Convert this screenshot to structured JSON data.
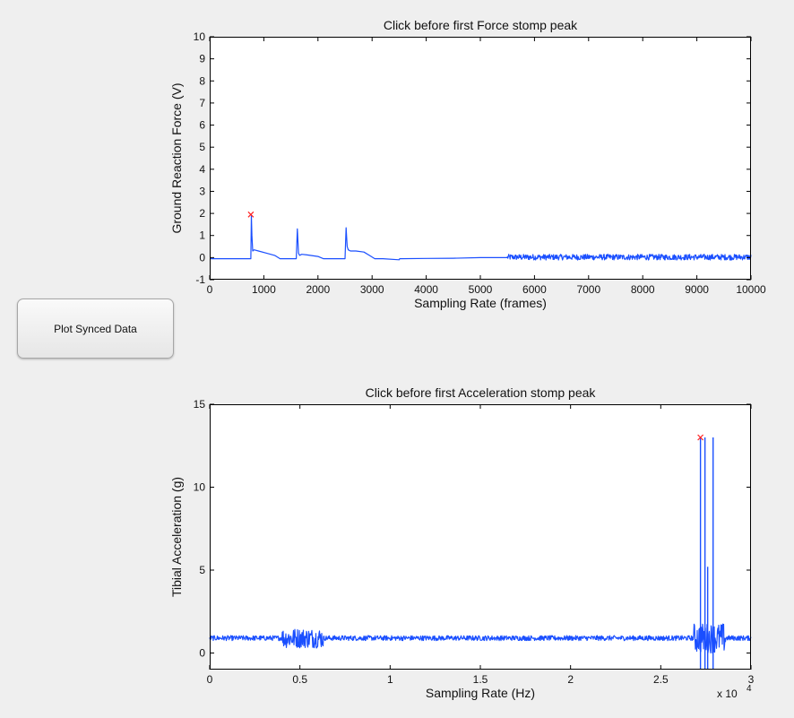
{
  "button": {
    "label": "Plot Synced Data"
  },
  "chart_data": [
    {
      "type": "line",
      "title": "Click before first Force stomp peak",
      "xlabel": "Sampling Rate (frames)",
      "ylabel": "Ground Reaction Force (V)",
      "xlim": [
        0,
        10000
      ],
      "ylim": [
        -1,
        10
      ],
      "xticks": [
        0,
        1000,
        2000,
        3000,
        4000,
        5000,
        6000,
        7000,
        8000,
        9000,
        10000
      ],
      "xtick_labels": [
        "0",
        "1000",
        "2000",
        "3000",
        "4000",
        "5000",
        "6000",
        "7000",
        "8000",
        "9000",
        "10000"
      ],
      "yticks": [
        -1,
        0,
        1,
        2,
        3,
        4,
        5,
        6,
        7,
        8,
        9,
        10
      ],
      "ytick_labels": [
        "-1",
        "0",
        "1",
        "2",
        "3",
        "4",
        "5",
        "6",
        "7",
        "8",
        "9",
        "10"
      ],
      "grid": false,
      "line_color": "#1a4fff",
      "marker_color": "#ff2020",
      "series": [
        {
          "x": [
            0,
            500,
            760,
            770,
            780,
            795,
            820,
            900,
            1050,
            1200,
            1300,
            1500,
            1600,
            1620,
            1640,
            1660,
            1700,
            1800,
            2000,
            2100,
            2200,
            2500,
            2520,
            2540,
            2560,
            2600,
            2700,
            2850,
            2950,
            3050,
            3200,
            3500,
            3510,
            4000,
            4500,
            5000,
            5500
          ],
          "y": [
            -0.05,
            -0.05,
            -0.05,
            1.9,
            1.0,
            0.3,
            0.35,
            0.3,
            0.2,
            0.1,
            -0.05,
            -0.05,
            -0.05,
            1.3,
            0.2,
            0.1,
            0.15,
            0.12,
            0.05,
            -0.05,
            -0.05,
            -0.05,
            1.35,
            0.5,
            0.35,
            0.3,
            0.3,
            0.25,
            0.1,
            -0.05,
            -0.05,
            -0.1,
            -0.05,
            -0.04,
            -0.03,
            0.0,
            0.0
          ]
        }
      ],
      "noise": {
        "x_start": 5500,
        "x_end": 10000,
        "center": 0.02,
        "amplitude": 0.13
      },
      "marker": {
        "x": 760,
        "y": 1.95,
        "symbol": "x"
      }
    },
    {
      "type": "line",
      "title": "Click before first Acceleration stomp peak",
      "xlabel": "Sampling Rate (Hz)",
      "ylabel": "Tibial Acceleration (g)",
      "xlim": [
        0,
        30000
      ],
      "ylim": [
        -1,
        15
      ],
      "xticks": [
        0,
        5000,
        10000,
        15000,
        20000,
        25000,
        30000
      ],
      "xtick_labels": [
        "0",
        "0.5",
        "1",
        "1.5",
        "2",
        "2.5",
        "3"
      ],
      "yticks": [
        0,
        5,
        10,
        15
      ],
      "ytick_labels": [
        "0",
        "5",
        "10",
        "15"
      ],
      "x_multiplier": "x 10",
      "x_multiplier_exp": "4",
      "grid": false,
      "line_color": "#1a4fff",
      "marker_color": "#ff2020",
      "baseline": {
        "x_start": 0,
        "x_end": 30000,
        "center": 0.9,
        "amplitude": 0.15
      },
      "bursts": [
        {
          "x_start": 4000,
          "x_end": 6300,
          "amplitude": 0.6
        },
        {
          "x_start": 26800,
          "x_end": 28600,
          "amplitude": 0.9
        }
      ],
      "spikes": [
        {
          "x": 27200,
          "top": 13,
          "bottom": -1
        },
        {
          "x": 27450,
          "top": 13,
          "bottom": -1
        },
        {
          "x": 27600,
          "top": 5.2,
          "bottom": -1
        },
        {
          "x": 27900,
          "top": 13,
          "bottom": -1
        }
      ],
      "marker": {
        "x": 27200,
        "y": 13,
        "symbol": "x"
      }
    }
  ]
}
